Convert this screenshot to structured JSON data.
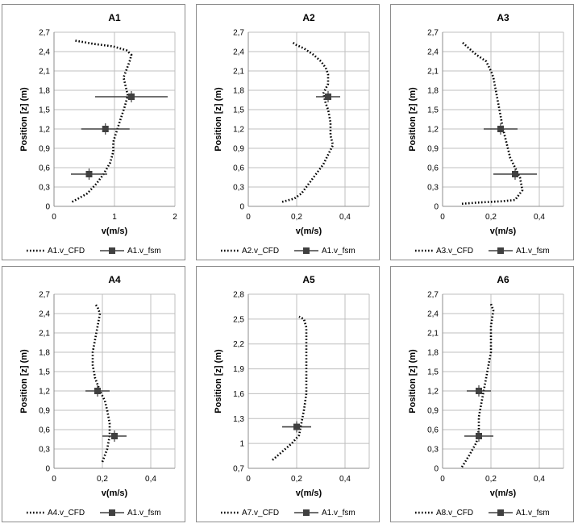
{
  "colors": {
    "cfd_line": "#000000",
    "fsm_marker": "#404040",
    "grid": "#bfbfbf",
    "axis": "#8c8c8c"
  },
  "chart_data": [
    {
      "type": "line",
      "title": "A1",
      "xlabel": "v(m/s)",
      "ylabel": "Position [z] (m)",
      "xlim": [
        0,
        2
      ],
      "ylim": [
        0,
        2.7
      ],
      "xticks": [
        0,
        1,
        2
      ],
      "xtick_labels": [
        "0",
        "1",
        "2"
      ],
      "yticks": [
        0,
        0.3,
        0.6,
        0.9,
        1.2,
        1.5,
        1.8,
        2.1,
        2.4,
        2.7
      ],
      "ytick_labels": [
        "0",
        "0,3",
        "0,6",
        "0,9",
        "1,2",
        "1,5",
        "1,8",
        "2,1",
        "2,4",
        "2,7"
      ],
      "series": [
        {
          "name": "A1.v_CFD",
          "style": "dotted",
          "x": [
            0.3,
            0.4,
            0.55,
            0.7,
            0.82,
            0.93,
            0.98,
            0.98,
            1.03,
            1.1,
            1.17,
            1.22,
            1.15,
            1.25,
            1.28,
            1.2,
            0.98,
            0.65,
            0.35
          ],
          "y": [
            0.07,
            0.12,
            0.2,
            0.35,
            0.5,
            0.68,
            0.85,
            1.0,
            1.15,
            1.35,
            1.55,
            1.72,
            2.0,
            2.25,
            2.35,
            2.42,
            2.48,
            2.52,
            2.57
          ]
        },
        {
          "name": "A1.v_fsm",
          "style": "marker_errorbar",
          "x": [
            0.58,
            0.85,
            1.28
          ],
          "y": [
            0.5,
            1.2,
            1.7
          ],
          "xerr": [
            0.3,
            0.4,
            0.6
          ]
        }
      ]
    },
    {
      "type": "line",
      "title": "A2",
      "xlabel": "v(m/s)",
      "ylabel": "Position [z] (m)",
      "xlim": [
        0,
        0.5
      ],
      "ylim": [
        0,
        2.7
      ],
      "xticks": [
        0,
        0.2,
        0.4
      ],
      "xtick_labels": [
        "0",
        "0,2",
        "0,4"
      ],
      "yticks": [
        0,
        0.3,
        0.6,
        0.9,
        1.2,
        1.5,
        1.8,
        2.1,
        2.4,
        2.7
      ],
      "ytick_labels": [
        "0",
        "0,3",
        "0,6",
        "0,9",
        "1,2",
        "1,5",
        "1,8",
        "2,1",
        "2,4",
        "2,7"
      ],
      "series": [
        {
          "name": "A2.v_CFD",
          "style": "dotted",
          "x": [
            0.14,
            0.19,
            0.22,
            0.25,
            0.28,
            0.31,
            0.33,
            0.35,
            0.34,
            0.34,
            0.33,
            0.32,
            0.31,
            0.33,
            0.33,
            0.32,
            0.3,
            0.27,
            0.23,
            0.2,
            0.18
          ],
          "y": [
            0.07,
            0.12,
            0.2,
            0.35,
            0.5,
            0.65,
            0.8,
            0.95,
            1.1,
            1.3,
            1.5,
            1.6,
            1.75,
            1.9,
            2.05,
            2.15,
            2.25,
            2.35,
            2.45,
            2.5,
            2.55
          ]
        },
        {
          "name": "A1.v_fsm",
          "style": "marker_errorbar",
          "x": [
            0.33
          ],
          "y": [
            1.7
          ],
          "xerr": [
            0.05
          ]
        }
      ]
    },
    {
      "type": "line",
      "title": "A3",
      "xlabel": "v(m/s)",
      "ylabel": "Position [z] (m)",
      "xlim": [
        0,
        0.5
      ],
      "ylim": [
        0,
        2.7
      ],
      "xticks": [
        0,
        0.2,
        0.4
      ],
      "xtick_labels": [
        "0",
        "0,2",
        "0,4"
      ],
      "yticks": [
        0,
        0.3,
        0.6,
        0.9,
        1.2,
        1.5,
        1.8,
        2.1,
        2.4,
        2.7
      ],
      "ytick_labels": [
        "0",
        "0,3",
        "0,6",
        "0,9",
        "1,2",
        "1,5",
        "1,8",
        "2,1",
        "2,4",
        "2,7"
      ],
      "series": [
        {
          "name": "A3.v_CFD",
          "style": "dotted",
          "x": [
            0.08,
            0.15,
            0.25,
            0.3,
            0.33,
            0.32,
            0.3,
            0.28,
            0.27,
            0.26,
            0.25,
            0.24,
            0.23,
            0.22,
            0.21,
            0.2,
            0.18,
            0.14,
            0.1,
            0.08
          ],
          "y": [
            0.04,
            0.06,
            0.08,
            0.1,
            0.25,
            0.45,
            0.6,
            0.75,
            0.9,
            1.05,
            1.2,
            1.4,
            1.6,
            1.8,
            2.0,
            2.1,
            2.25,
            2.35,
            2.48,
            2.55
          ]
        },
        {
          "name": "A1.v_fsm",
          "style": "marker_errorbar",
          "x": [
            0.24,
            0.3
          ],
          "y": [
            1.2,
            0.5
          ],
          "xerr": [
            0.07,
            0.09
          ]
        }
      ]
    },
    {
      "type": "line",
      "title": "A4",
      "xlabel": "v(m/s)",
      "ylabel": "Position [z] (m)",
      "xlim": [
        0,
        0.5
      ],
      "ylim": [
        0,
        2.7
      ],
      "xticks": [
        0,
        0.2,
        0.4
      ],
      "xtick_labels": [
        "0",
        "0,2",
        "0,4"
      ],
      "yticks": [
        0,
        0.3,
        0.6,
        0.9,
        1.2,
        1.5,
        1.8,
        2.1,
        2.4,
        2.7
      ],
      "ytick_labels": [
        "0",
        "0,3",
        "0,6",
        "0,9",
        "1,2",
        "1,5",
        "1,8",
        "2,1",
        "2,4",
        "2,7"
      ],
      "series": [
        {
          "name": "A4.v_CFD",
          "style": "dotted",
          "x": [
            0.2,
            0.22,
            0.23,
            0.23,
            0.22,
            0.21,
            0.19,
            0.17,
            0.16,
            0.16,
            0.17,
            0.18,
            0.19,
            0.18,
            0.17
          ],
          "y": [
            0.1,
            0.3,
            0.5,
            0.7,
            0.9,
            1.05,
            1.2,
            1.4,
            1.6,
            1.8,
            2.0,
            2.2,
            2.4,
            2.5,
            2.55
          ]
        },
        {
          "name": "A1.v_fsm",
          "style": "marker_errorbar",
          "x": [
            0.18,
            0.25
          ],
          "y": [
            1.2,
            0.5
          ],
          "xerr": [
            0.05,
            0.05
          ]
        }
      ]
    },
    {
      "type": "line",
      "title": "A5",
      "xlabel": "v(m/s)",
      "ylabel": "Position [z] (m)",
      "xlim": [
        0,
        0.5
      ],
      "ylim": [
        0.7,
        2.8
      ],
      "xticks": [
        0,
        0.2,
        0.4
      ],
      "xtick_labels": [
        "0",
        "0,2",
        "0,4"
      ],
      "yticks": [
        0.7,
        1.0,
        1.3,
        1.6,
        1.9,
        2.2,
        2.5,
        2.8
      ],
      "ytick_labels": [
        "0,7",
        "1",
        "1,3",
        "1,6",
        "1,9",
        "2,2",
        "2,5",
        "2,8"
      ],
      "series": [
        {
          "name": "A7.v_CFD",
          "style": "dotted",
          "x": [
            0.1,
            0.14,
            0.18,
            0.21,
            0.22,
            0.23,
            0.24,
            0.24,
            0.24,
            0.24,
            0.24,
            0.23,
            0.21
          ],
          "y": [
            0.8,
            0.9,
            1.0,
            1.1,
            1.25,
            1.4,
            1.6,
            1.8,
            2.0,
            2.2,
            2.4,
            2.5,
            2.53
          ]
        },
        {
          "name": "A1.v_fsm",
          "style": "marker_errorbar",
          "x": [
            0.2
          ],
          "y": [
            1.2
          ],
          "xerr": [
            0.06
          ]
        }
      ]
    },
    {
      "type": "line",
      "title": "A6",
      "xlabel": "v(m/s)",
      "ylabel": "Position [z] (m)",
      "xlim": [
        0,
        0.5
      ],
      "ylim": [
        0,
        2.7
      ],
      "xticks": [
        0,
        0.2,
        0.4
      ],
      "xtick_labels": [
        "0",
        "0,2",
        "0,4"
      ],
      "yticks": [
        0,
        0.3,
        0.6,
        0.9,
        1.2,
        1.5,
        1.8,
        2.1,
        2.4,
        2.7
      ],
      "ytick_labels": [
        "0",
        "0,3",
        "0,6",
        "0,9",
        "1,2",
        "1,5",
        "1,8",
        "2,1",
        "2,4",
        "2,7"
      ],
      "series": [
        {
          "name": "A8.v_CFD",
          "style": "dotted",
          "x": [
            0.08,
            0.11,
            0.14,
            0.15,
            0.15,
            0.16,
            0.17,
            0.18,
            0.19,
            0.2,
            0.2,
            0.2,
            0.21,
            0.2
          ],
          "y": [
            0.02,
            0.2,
            0.4,
            0.6,
            0.8,
            1.0,
            1.2,
            1.4,
            1.6,
            1.8,
            2.0,
            2.2,
            2.45,
            2.55
          ]
        },
        {
          "name": "A1.v_fsm",
          "style": "marker_errorbar",
          "x": [
            0.15,
            0.15
          ],
          "y": [
            1.2,
            0.5
          ],
          "xerr": [
            0.05,
            0.06
          ]
        }
      ]
    }
  ]
}
